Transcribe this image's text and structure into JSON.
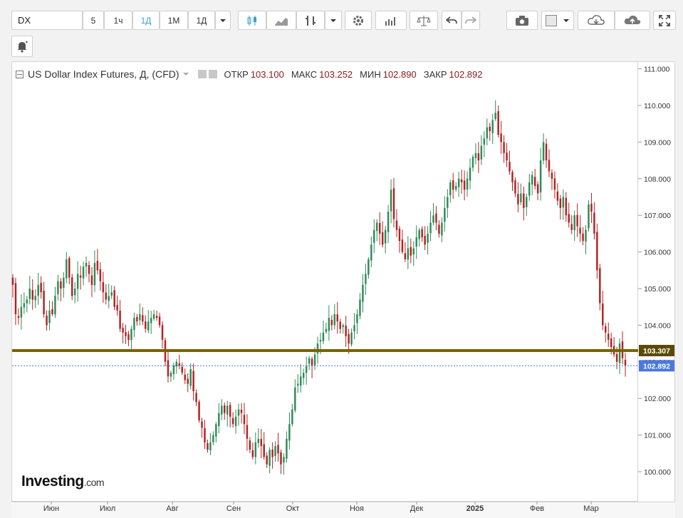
{
  "toolbar": {
    "symbol": "DX",
    "intervals": [
      "5",
      "1ч",
      "1Д",
      "1М",
      "1Д"
    ],
    "active_interval": "1Д"
  },
  "legend": {
    "title": "US Dollar Index Futures, Д, (CFD)",
    "open_label": "ОТКР",
    "open": "103.100",
    "high_label": "МАКС",
    "high": "103.252",
    "low_label": "МИН",
    "low": "102.890",
    "close_label": "ЗАКР",
    "close": "102.892"
  },
  "logo": {
    "main": "Investing",
    "suffix": ".com"
  },
  "chart_data": {
    "type": "candlestick",
    "symbol": "US Dollar Index Futures",
    "ylim": [
      99.6,
      111.2
    ],
    "y_ticks": [
      "100.000",
      "101.000",
      "102.000",
      "103.000",
      "104.000",
      "105.000",
      "106.000",
      "107.000",
      "108.000",
      "109.000",
      "110.000",
      "111.000"
    ],
    "x_labels": [
      "Июн",
      "Июл",
      "Авг",
      "Сен",
      "Окт",
      "Ноя",
      "Дек",
      "2025",
      "Фев",
      "Мар"
    ],
    "x_label_bold": "2025",
    "horizontal_line": {
      "value": 103.307,
      "label": "103.307",
      "color": "#7a6200"
    },
    "last_price": {
      "value": 102.892,
      "label": "102.892",
      "color": "#4a78e0"
    },
    "up_color": "#2e8b57",
    "down_color": "#b22222",
    "closes": [
      105.1,
      104.3,
      104.2,
      104.5,
      104.6,
      104.7,
      105.0,
      104.7,
      104.8,
      105.1,
      104.9,
      104.3,
      104.0,
      104.4,
      104.3,
      104.8,
      105.2,
      105.0,
      105.3,
      105.8,
      105.3,
      104.8,
      105.0,
      105.4,
      105.3,
      105.6,
      105.7,
      105.4,
      105.1,
      105.7,
      105.5,
      105.2,
      104.9,
      104.7,
      104.8,
      104.9,
      104.5,
      104.4,
      103.9,
      103.8,
      103.7,
      103.6,
      103.9,
      104.2,
      104.1,
      104.3,
      104.1,
      103.9,
      104.1,
      104.2,
      104.3,
      104.2,
      104.0,
      103.6,
      103.0,
      102.6,
      102.7,
      102.9,
      103.0,
      102.9,
      102.7,
      102.5,
      102.4,
      102.8,
      102.2,
      101.9,
      101.4,
      101.2,
      100.8,
      100.6,
      100.8,
      101.0,
      101.3,
      101.6,
      101.8,
      101.6,
      101.8,
      101.5,
      101.3,
      101.5,
      101.7,
      101.6,
      101.3,
      100.9,
      100.6,
      100.4,
      100.8,
      100.9,
      100.7,
      100.4,
      100.2,
      100.6,
      100.4,
      100.7,
      100.5,
      100.2,
      100.4,
      100.9,
      101.3,
      101.7,
      102.3,
      102.4,
      102.6,
      102.7,
      102.9,
      103.1,
      102.9,
      103.2,
      103.5,
      103.6,
      103.8,
      103.9,
      104.2,
      104.0,
      104.3,
      104.1,
      103.9,
      104.0,
      103.7,
      103.5,
      103.8,
      104.0,
      104.3,
      104.7,
      105.1,
      105.4,
      105.8,
      106.2,
      106.6,
      106.8,
      106.5,
      106.2,
      106.6,
      107.1,
      107.7,
      106.9,
      106.6,
      106.3,
      106.0,
      105.8,
      106.1,
      105.9,
      106.1,
      106.4,
      106.6,
      106.4,
      106.2,
      106.5,
      106.8,
      107.0,
      106.8,
      106.5,
      106.8,
      107.2,
      107.5,
      107.9,
      107.7,
      107.8,
      108.0,
      107.9,
      107.7,
      108.0,
      108.3,
      108.6,
      108.7,
      108.5,
      108.9,
      109.1,
      109.4,
      109.3,
      109.6,
      109.8,
      109.2,
      109.0,
      108.7,
      108.5,
      108.2,
      107.9,
      107.6,
      107.3,
      107.6,
      107.2,
      107.5,
      107.9,
      108.1,
      107.8,
      107.6,
      108.5,
      109.0,
      108.5,
      108.2,
      108.0,
      107.7,
      107.4,
      107.2,
      107.5,
      107.0,
      106.8,
      106.6,
      107.0,
      106.7,
      106.5,
      106.3,
      106.6,
      107.3,
      107.1,
      106.5,
      105.5,
      104.6,
      104.0,
      103.8,
      103.6,
      103.4,
      103.2,
      103.0,
      103.5,
      103.1,
      102.9
    ]
  }
}
